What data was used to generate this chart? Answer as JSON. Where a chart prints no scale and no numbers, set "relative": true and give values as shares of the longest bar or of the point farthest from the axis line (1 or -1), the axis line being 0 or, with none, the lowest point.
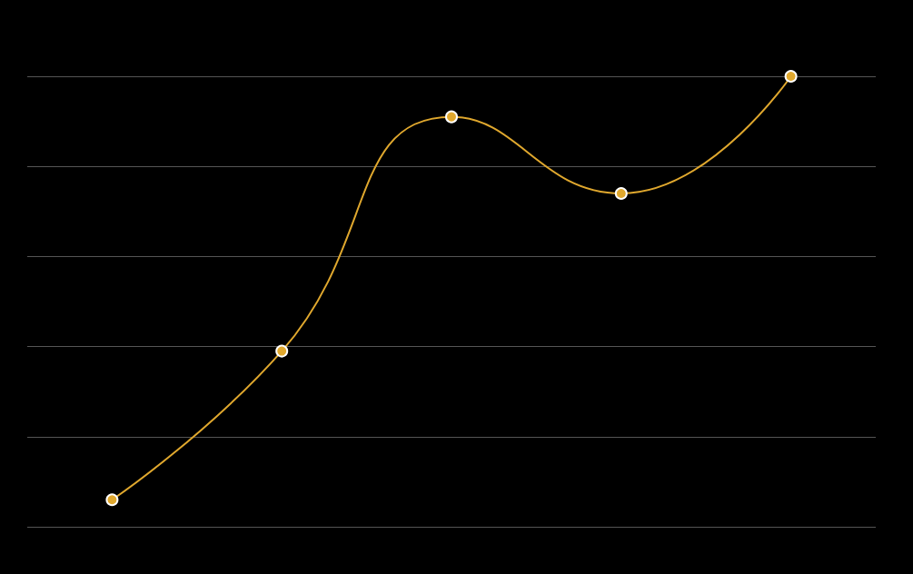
{
  "chart_data": {
    "type": "line",
    "relative": true,
    "categories": [
      null,
      null,
      null,
      null,
      null
    ],
    "series": [
      {
        "color": "#e0a82e",
        "values": [
          0.06,
          0.39,
          0.91,
          0.74,
          1
        ]
      }
    ],
    "grid": "y",
    "marker": "circle",
    "line_style": "solid"
  }
}
